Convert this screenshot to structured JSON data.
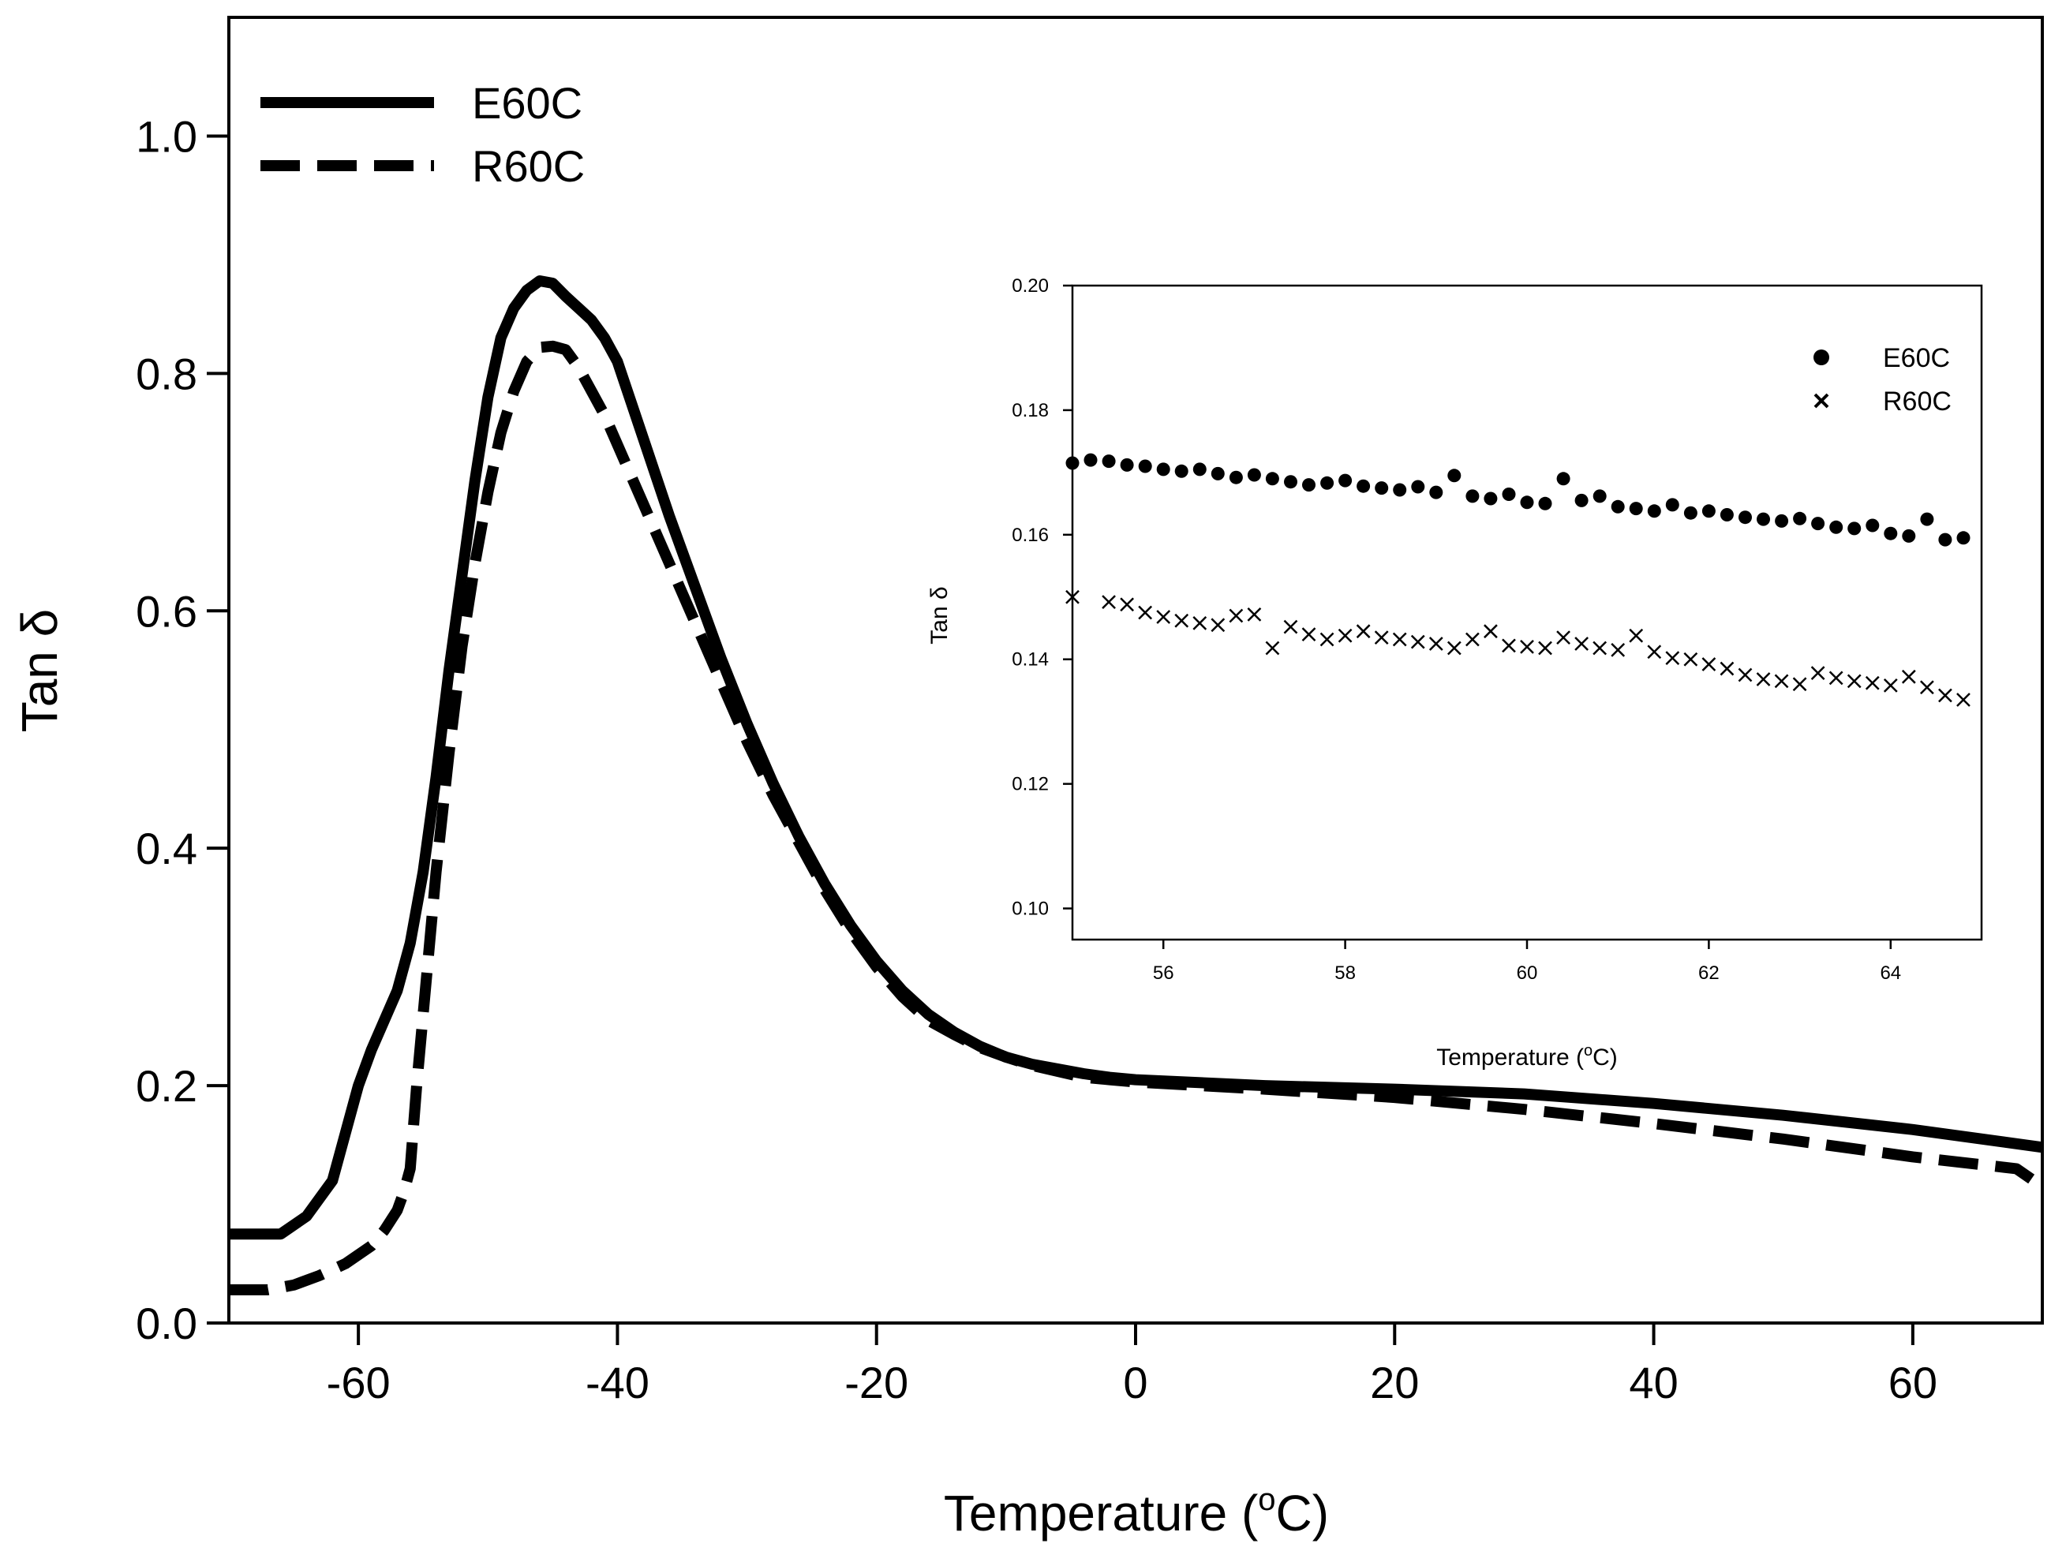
{
  "chart_data": [
    {
      "id": "main",
      "type": "line",
      "title": "",
      "xlabel": "Temperature",
      "xlabel_unit_prefix": "(",
      "xlabel_unit_super": "o",
      "xlabel_unit_suffix": "C)",
      "ylabel": "Tan δ",
      "xlim": [
        -70,
        70
      ],
      "ylim": [
        0,
        1.1
      ],
      "xticks": [
        -60,
        -40,
        -20,
        0,
        20,
        40,
        60
      ],
      "xtick_labels": [
        "-60",
        "-40",
        "-20",
        "0",
        "20",
        "40",
        "60"
      ],
      "yticks": [
        0,
        0.2,
        0.4,
        0.6,
        0.8,
        1.0
      ],
      "ytick_labels": [
        "0.0",
        "0.2",
        "0.4",
        "0.6",
        "0.8",
        "1.0"
      ],
      "grid": false,
      "legend_position": "top-left",
      "series": [
        {
          "name": "E60C",
          "style": "solid",
          "x": [
            -70,
            -66,
            -64,
            -62,
            -61,
            -60,
            -59,
            -58,
            -57,
            -56,
            -55,
            -54,
            -53,
            -52,
            -51,
            -50,
            -49,
            -48,
            -47,
            -46,
            -45,
            -44,
            -43,
            -42,
            -41,
            -40,
            -38,
            -36,
            -34,
            -32,
            -30,
            -28,
            -26,
            -24,
            -22,
            -20,
            -18,
            -16,
            -14,
            -12,
            -10,
            -8,
            -6,
            -4,
            -2,
            0,
            10,
            20,
            30,
            40,
            50,
            60,
            70
          ],
          "y": [
            0.075,
            0.075,
            0.09,
            0.12,
            0.16,
            0.2,
            0.23,
            0.255,
            0.28,
            0.32,
            0.38,
            0.46,
            0.55,
            0.63,
            0.71,
            0.78,
            0.83,
            0.855,
            0.87,
            0.878,
            0.876,
            0.865,
            0.855,
            0.845,
            0.83,
            0.81,
            0.745,
            0.68,
            0.62,
            0.56,
            0.505,
            0.455,
            0.41,
            0.37,
            0.335,
            0.305,
            0.28,
            0.26,
            0.245,
            0.233,
            0.224,
            0.218,
            0.214,
            0.21,
            0.207,
            0.205,
            0.2,
            0.197,
            0.193,
            0.185,
            0.175,
            0.163,
            0.148
          ]
        },
        {
          "name": "R60C",
          "style": "dashed",
          "x": [
            -70,
            -67,
            -65,
            -63,
            -61,
            -59,
            -58,
            -57,
            -56.5,
            -56,
            -55.5,
            -55,
            -54,
            -53,
            -52,
            -51,
            -50,
            -49,
            -48,
            -47,
            -46,
            -45,
            -44,
            -43,
            -42,
            -41,
            -40,
            -38,
            -36,
            -34,
            -32,
            -30,
            -28,
            -26,
            -24,
            -22,
            -20,
            -18,
            -16,
            -14,
            -12,
            -10,
            -8,
            -6,
            -4,
            -2,
            0,
            10,
            20,
            30,
            40,
            50,
            60,
            68,
            70
          ],
          "y": [
            0.028,
            0.028,
            0.032,
            0.04,
            0.05,
            0.065,
            0.078,
            0.095,
            0.11,
            0.13,
            0.2,
            0.26,
            0.38,
            0.48,
            0.57,
            0.64,
            0.7,
            0.75,
            0.785,
            0.81,
            0.822,
            0.823,
            0.82,
            0.805,
            0.785,
            0.765,
            0.74,
            0.69,
            0.64,
            0.59,
            0.54,
            0.49,
            0.445,
            0.405,
            0.365,
            0.33,
            0.3,
            0.275,
            0.255,
            0.243,
            0.232,
            0.224,
            0.217,
            0.212,
            0.207,
            0.205,
            0.203,
            0.197,
            0.19,
            0.18,
            0.168,
            0.155,
            0.14,
            0.13,
            0.115
          ]
        }
      ]
    },
    {
      "id": "inset",
      "type": "scatter",
      "title": "",
      "xlabel": "Temperature",
      "xlabel_unit_prefix": "(",
      "xlabel_unit_super": "o",
      "xlabel_unit_suffix": "C)",
      "ylabel": "Tan δ",
      "xlim": [
        55,
        65
      ],
      "ylim": [
        0.095,
        0.2
      ],
      "xticks": [
        56,
        58,
        60,
        62,
        64
      ],
      "xtick_labels": [
        "56",
        "58",
        "60",
        "62",
        "64"
      ],
      "yticks": [
        0.1,
        0.12,
        0.14,
        0.16,
        0.18,
        0.2
      ],
      "ytick_labels": [
        "0.10",
        "0.12",
        "0.14",
        "0.16",
        "0.18",
        "0.20"
      ],
      "grid": false,
      "legend_position": "top-right",
      "series": [
        {
          "name": "E60C",
          "marker": "circle",
          "x": [
            55.0,
            55.2,
            55.4,
            55.6,
            55.8,
            56.0,
            56.2,
            56.4,
            56.6,
            56.8,
            57.0,
            57.2,
            57.4,
            57.6,
            57.8,
            58.0,
            58.2,
            58.4,
            58.6,
            58.8,
            59.0,
            59.2,
            59.4,
            59.6,
            59.8,
            60.0,
            60.2,
            60.4,
            60.6,
            60.8,
            61.0,
            61.2,
            61.4,
            61.6,
            61.8,
            62.0,
            62.2,
            62.4,
            62.6,
            62.8,
            63.0,
            63.2,
            63.4,
            63.6,
            63.8,
            64.0,
            64.2,
            64.4,
            64.6,
            64.8
          ],
          "y": [
            0.1715,
            0.172,
            0.1718,
            0.1712,
            0.171,
            0.1705,
            0.1702,
            0.1705,
            0.1698,
            0.1692,
            0.1696,
            0.169,
            0.1685,
            0.168,
            0.1683,
            0.1687,
            0.1678,
            0.1675,
            0.1672,
            0.1677,
            0.1668,
            0.1695,
            0.1662,
            0.1658,
            0.1665,
            0.1652,
            0.165,
            0.169,
            0.1655,
            0.1662,
            0.1645,
            0.1642,
            0.1638,
            0.1648,
            0.1635,
            0.1638,
            0.1632,
            0.1628,
            0.1625,
            0.1622,
            0.1626,
            0.1618,
            0.1612,
            0.161,
            0.1615,
            0.1602,
            0.1598,
            0.1625,
            0.1592,
            0.1595
          ]
        },
        {
          "name": "R60C",
          "marker": "x",
          "x": [
            55.0,
            55.4,
            55.6,
            55.8,
            56.0,
            56.2,
            56.4,
            56.6,
            56.8,
            57.0,
            57.2,
            57.4,
            57.6,
            57.8,
            58.0,
            58.2,
            58.4,
            58.6,
            58.8,
            59.0,
            59.2,
            59.4,
            59.6,
            59.8,
            60.0,
            60.2,
            60.4,
            60.6,
            60.8,
            61.0,
            61.2,
            61.4,
            61.6,
            61.8,
            62.0,
            62.2,
            62.4,
            62.6,
            62.8,
            63.0,
            63.2,
            63.4,
            63.6,
            63.8,
            64.0,
            64.2,
            64.4,
            64.6,
            64.8
          ],
          "y": [
            0.15,
            0.1492,
            0.1488,
            0.1475,
            0.1468,
            0.1462,
            0.1458,
            0.1455,
            0.147,
            0.1472,
            0.1418,
            0.1452,
            0.144,
            0.1432,
            0.1438,
            0.1445,
            0.1435,
            0.1432,
            0.1428,
            0.1425,
            0.1418,
            0.1432,
            0.1445,
            0.1422,
            0.142,
            0.1418,
            0.1435,
            0.1425,
            0.1418,
            0.1415,
            0.1438,
            0.1412,
            0.1402,
            0.14,
            0.1392,
            0.1385,
            0.1375,
            0.1368,
            0.1365,
            0.136,
            0.1378,
            0.137,
            0.1365,
            0.1362,
            0.1358,
            0.1372,
            0.1355,
            0.1342,
            0.1335
          ]
        }
      ]
    }
  ]
}
